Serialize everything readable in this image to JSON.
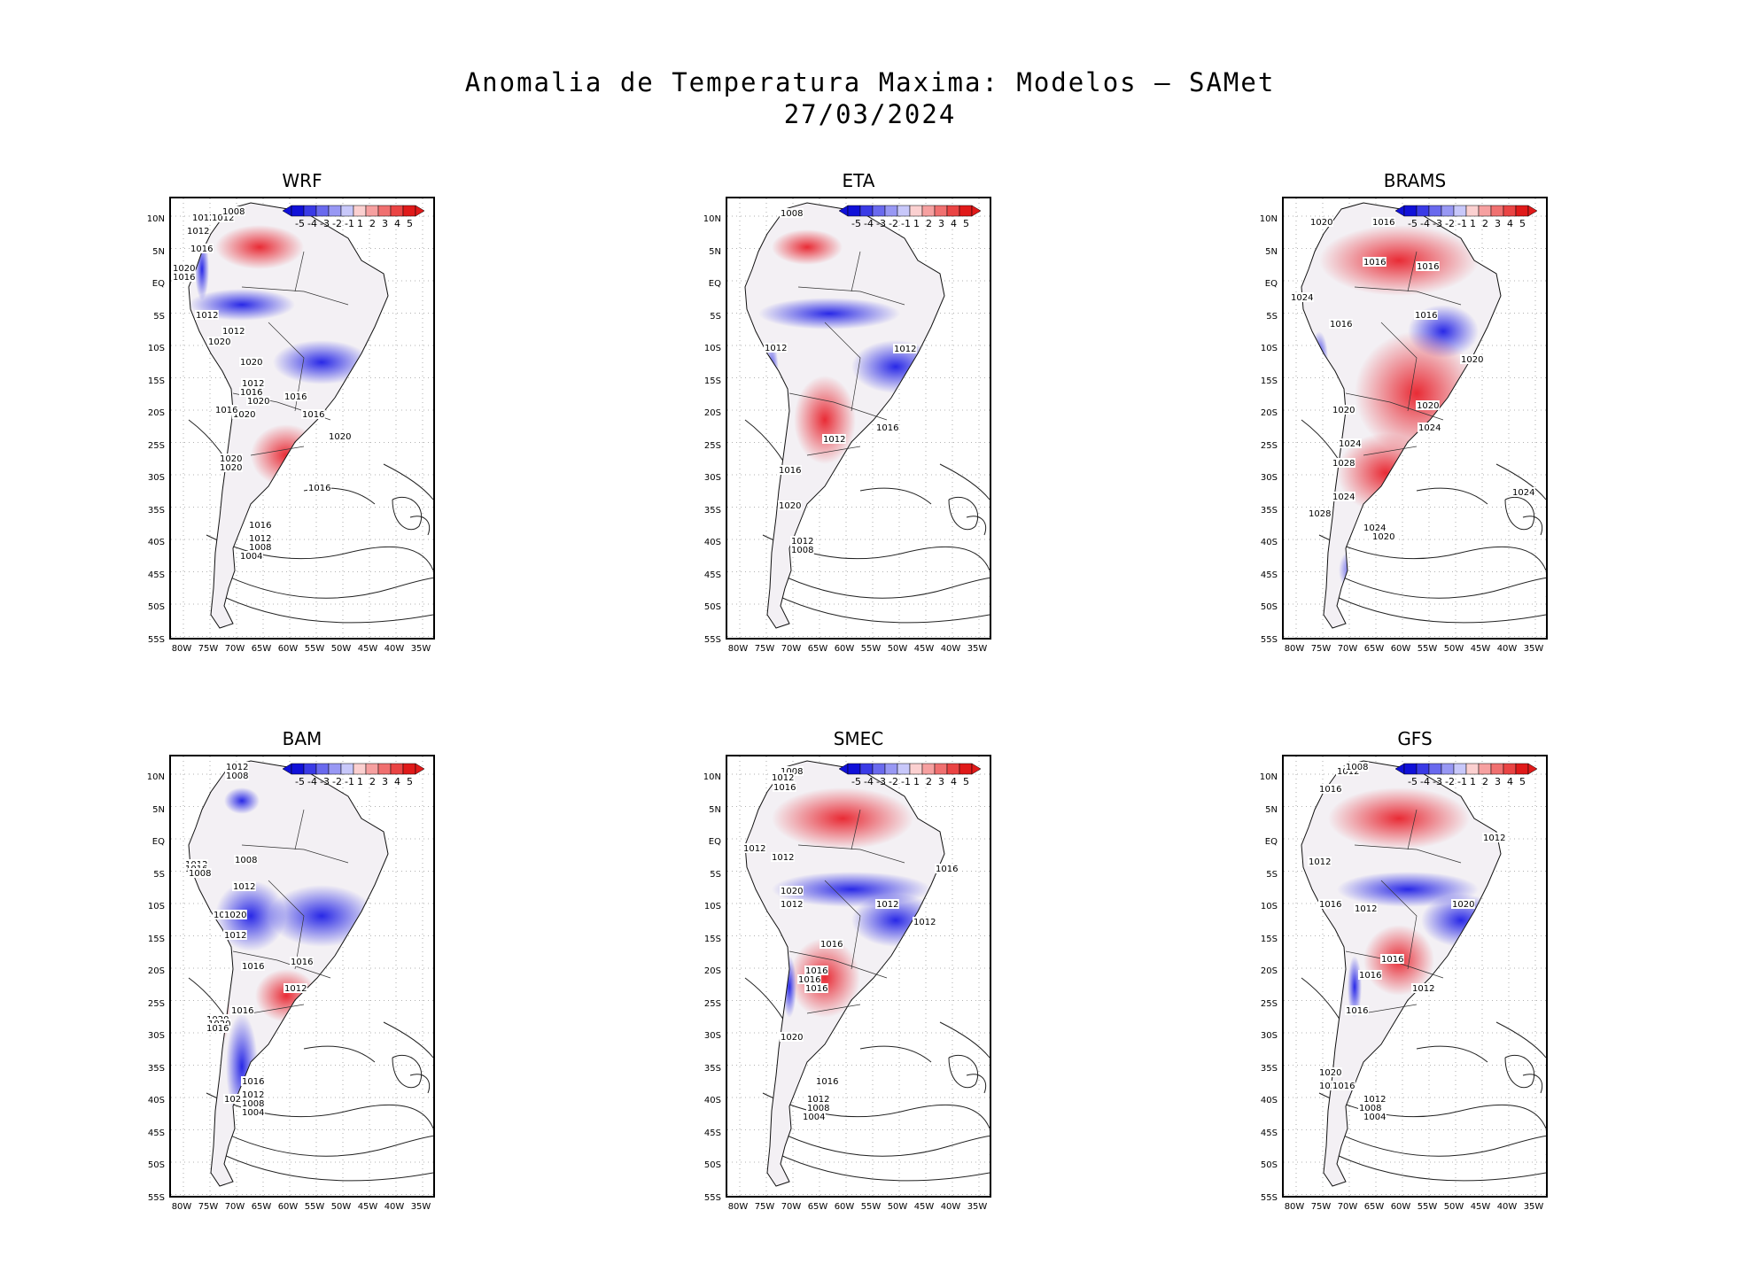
{
  "title_line1": "Anomalia de Temperatura Maxima: Modelos – SAMet",
  "title_line2": "27/03/2024",
  "colorbar_labels": [
    "-5",
    "-4",
    "-3",
    "-2",
    "-1",
    "1",
    "2",
    "3",
    "4",
    "5"
  ],
  "colors": {
    "warm": "#e8212b",
    "cold": "#1e1ee6",
    "neutral": "#ffffff"
  },
  "lat_labels": [
    "10N",
    "5N",
    "EQ",
    "5S",
    "10S",
    "15S",
    "20S",
    "25S",
    "30S",
    "35S",
    "40S",
    "45S",
    "50S",
    "55S"
  ],
  "lon_labels": [
    "80W",
    "75W",
    "70W",
    "65W",
    "60W",
    "55W",
    "50W",
    "45W",
    "40W",
    "35W"
  ],
  "panels": [
    {
      "name": "WRF",
      "isobars": [
        "1012",
        "1012",
        "1008",
        "1012",
        "1016",
        "1020",
        "1016",
        "1012",
        "1020",
        "1012",
        "1020",
        "1012",
        "1016",
        "1020",
        "1020",
        "1016",
        "1016",
        "1016",
        "1020",
        "1020",
        "1020",
        "1016",
        "1016",
        "1012",
        "1008",
        "1004",
        "101"
      ]
    },
    {
      "name": "ETA",
      "isobars": [
        "1008",
        "1012",
        "1012",
        "1012",
        "1016",
        "1016",
        "1020",
        "1012",
        "1008"
      ]
    },
    {
      "name": "BRAMS",
      "isobars": [
        "1020",
        "1016",
        "1016",
        "1016",
        "1016",
        "1024",
        "1016",
        "1020",
        "1020",
        "1024",
        "1020",
        "1024",
        "1028",
        "1024",
        "1028",
        "1024",
        "1024",
        "1020"
      ]
    },
    {
      "name": "BAM",
      "isobars": [
        "1012",
        "1008",
        "1012",
        "1016",
        "1008",
        "1008",
        "1012",
        "1012",
        "1012",
        "1020",
        "1016",
        "1016",
        "1012",
        "1016",
        "1020",
        "1020",
        "1016",
        "1020",
        "1016",
        "1012",
        "1008",
        "1004"
      ]
    },
    {
      "name": "SMEC",
      "isobars": [
        "1008",
        "1012",
        "1016",
        "1012",
        "1012",
        "1016",
        "1020",
        "1012",
        "1012",
        "1016",
        "1012",
        "1016",
        "1016",
        "1016",
        "1020",
        "1016",
        "1012",
        "1008",
        "1004"
      ]
    },
    {
      "name": "GFS",
      "isobars": [
        "1012",
        "1008",
        "1016",
        "1012",
        "1012",
        "1020",
        "1016",
        "1012",
        "1016",
        "1012",
        "1016",
        "1016",
        "1020",
        "1020",
        "1016",
        "1012",
        "1008",
        "1004"
      ]
    }
  ]
}
